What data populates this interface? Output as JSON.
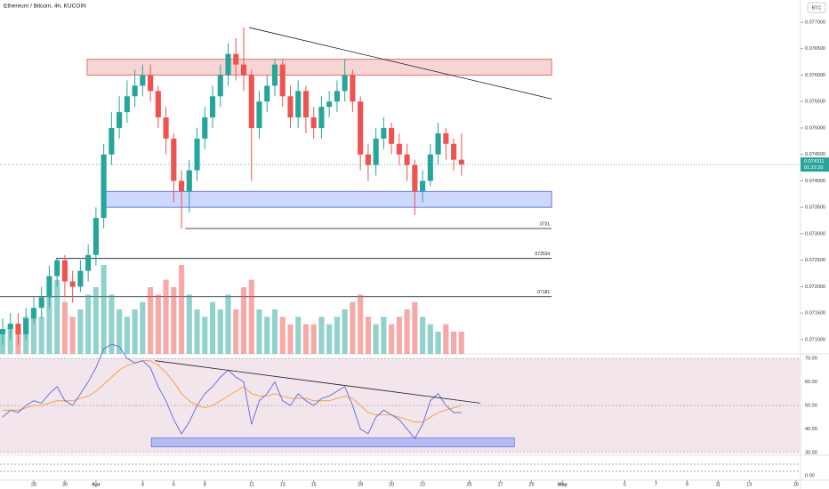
{
  "chart_data": {
    "type": "candlestick",
    "title": "Ethereum / Bitcoin, 4h, KUCOIN",
    "currency": "BTC",
    "x": [
      26,
      26.5,
      27,
      27.5,
      28,
      28.5,
      29,
      29.5,
      30,
      30.5,
      31,
      31.5,
      32,
      32.5,
      33,
      33.5,
      34,
      34.5,
      35,
      35.5,
      36,
      36.5,
      37,
      37.5,
      38,
      38.5,
      39,
      39.5,
      40,
      40.5,
      41,
      41.5,
      42,
      42.5,
      43,
      43.5,
      44,
      44.5,
      45,
      45.5,
      46,
      46.5,
      47,
      47.5,
      48,
      48.5,
      49,
      49.5,
      50,
      50.5,
      51,
      51.5,
      52,
      52.5,
      53,
      53.5,
      54,
      54.5,
      55,
      55.5
    ],
    "open": [
      0.0711,
      0.0712,
      0.0713,
      0.0711,
      0.0714,
      0.0716,
      0.0718,
      0.0722,
      0.0725,
      0.0721,
      0.072,
      0.0723,
      0.0726,
      0.0733,
      0.0745,
      0.075,
      0.0753,
      0.0756,
      0.0758,
      0.076,
      0.0757,
      0.0752,
      0.0748,
      0.074,
      0.0738,
      0.0742,
      0.0748,
      0.0752,
      0.0756,
      0.076,
      0.0764,
      0.0762,
      0.076,
      0.075,
      0.0755,
      0.0758,
      0.0762,
      0.0756,
      0.0752,
      0.0757,
      0.0752,
      0.075,
      0.0754,
      0.0755,
      0.0757,
      0.076,
      0.0755,
      0.0745,
      0.0743,
      0.0748,
      0.075,
      0.0747,
      0.0745,
      0.0743,
      0.0738,
      0.074,
      0.0745,
      0.0749,
      0.0747,
      0.0744
    ],
    "high": [
      0.0714,
      0.0715,
      0.0715,
      0.0716,
      0.0718,
      0.072,
      0.0724,
      0.07253,
      0.0726,
      0.0723,
      0.0725,
      0.0728,
      0.0735,
      0.0747,
      0.0753,
      0.0756,
      0.0759,
      0.0761,
      0.0762,
      0.0762,
      0.0758,
      0.0754,
      0.0749,
      0.0742,
      0.0744,
      0.075,
      0.0754,
      0.0758,
      0.0762,
      0.0766,
      0.0767,
      0.0769,
      0.0761,
      0.0757,
      0.076,
      0.0763,
      0.0763,
      0.0758,
      0.0759,
      0.0758,
      0.0754,
      0.0756,
      0.0757,
      0.0759,
      0.0763,
      0.0761,
      0.0756,
      0.0747,
      0.075,
      0.0752,
      0.0751,
      0.0749,
      0.0747,
      0.0744,
      0.0742,
      0.0747,
      0.0751,
      0.075,
      0.0748,
      0.0749
    ],
    "low": [
      0.0709,
      0.071,
      0.0709,
      0.071,
      0.0713,
      0.0714,
      0.0716,
      0.072,
      0.0718,
      0.0717,
      0.0719,
      0.0721,
      0.0724,
      0.0731,
      0.0743,
      0.0748,
      0.0751,
      0.0754,
      0.0756,
      0.0755,
      0.075,
      0.0745,
      0.0736,
      0.0731,
      0.0734,
      0.074,
      0.0746,
      0.075,
      0.0754,
      0.0758,
      0.0759,
      0.0757,
      0.074,
      0.0748,
      0.0753,
      0.0756,
      0.0754,
      0.075,
      0.075,
      0.0749,
      0.0748,
      0.0748,
      0.0752,
      0.0753,
      0.0755,
      0.0753,
      0.0742,
      0.074,
      0.0741,
      0.0746,
      0.0745,
      0.0743,
      0.074,
      0.07335,
      0.0736,
      0.0739,
      0.0743,
      0.0744,
      0.0742,
      0.0741
    ],
    "close": [
      0.0712,
      0.0713,
      0.0711,
      0.0714,
      0.0716,
      0.0718,
      0.0722,
      0.0725,
      0.0721,
      0.072,
      0.0723,
      0.0726,
      0.0733,
      0.0745,
      0.075,
      0.0753,
      0.0756,
      0.0758,
      0.076,
      0.0757,
      0.0752,
      0.0748,
      0.074,
      0.0738,
      0.0742,
      0.0748,
      0.0752,
      0.0756,
      0.076,
      0.0764,
      0.0762,
      0.076,
      0.075,
      0.0755,
      0.0758,
      0.0762,
      0.0756,
      0.0752,
      0.0757,
      0.0752,
      0.075,
      0.0754,
      0.0755,
      0.0757,
      0.076,
      0.0755,
      0.0745,
      0.0743,
      0.0748,
      0.075,
      0.0747,
      0.0745,
      0.0743,
      0.0738,
      0.074,
      0.0745,
      0.0749,
      0.0747,
      0.0744,
      0.07431
    ],
    "volume": [
      3,
      4,
      3,
      5,
      6,
      5,
      8,
      10,
      7,
      5,
      6,
      8,
      9,
      12,
      8,
      6,
      5,
      6,
      7,
      9,
      8,
      10,
      9,
      12,
      8,
      6,
      5,
      7,
      6,
      8,
      6,
      9,
      10,
      6,
      5,
      6,
      5,
      4,
      5,
      4,
      4,
      5,
      4,
      5,
      6,
      7,
      8,
      5,
      4,
      5,
      4,
      5,
      6,
      7,
      5,
      4,
      3,
      4,
      3,
      3
    ],
    "up_color": "#26a69a",
    "down_color": "#ef5350",
    "xlim": [
      25.83,
      77.3
    ],
    "xticks": [
      28,
      30,
      {
        "value": 32,
        "label": "Apr"
      },
      {
        "value": 35,
        "label": "4"
      },
      {
        "value": 37,
        "label": "6"
      },
      {
        "value": 39,
        "label": "8"
      },
      {
        "value": 42,
        "label": "11"
      },
      {
        "value": 44,
        "label": "13"
      },
      {
        "value": 46,
        "label": "15"
      },
      {
        "value": 49,
        "label": "18"
      },
      {
        "value": 51,
        "label": "20"
      },
      {
        "value": 53,
        "label": "22"
      },
      {
        "value": 56,
        "label": "25"
      },
      {
        "value": 58,
        "label": "27"
      },
      {
        "value": 60,
        "label": "29"
      },
      {
        "value": 62,
        "label": "May"
      },
      {
        "value": 66,
        "label": "5"
      },
      {
        "value": 68,
        "label": "7"
      },
      {
        "value": 70,
        "label": "9"
      },
      {
        "value": 72,
        "label": "11"
      },
      {
        "value": 74,
        "label": "13"
      },
      {
        "value": 77,
        "label": "16"
      }
    ],
    "ylim": [
      0.07073,
      0.07742
    ],
    "yticks": [
      {
        "value": 0.071,
        "label": "0.071000"
      },
      {
        "value": 0.0715,
        "label": "0.071500"
      },
      {
        "value": 0.072,
        "label": "0.072000"
      },
      {
        "value": 0.0725,
        "label": "0.072500"
      },
      {
        "value": 0.073,
        "label": "0.073000"
      },
      {
        "value": 0.0735,
        "label": "0.073500"
      },
      {
        "value": 0.074,
        "label": "0.074000"
      },
      {
        "value": 0.0745,
        "label": "0.074500"
      },
      {
        "value": 0.075,
        "label": "0.075000"
      },
      {
        "value": 0.0755,
        "label": "0.075500"
      },
      {
        "value": 0.076,
        "label": "0.076000"
      },
      {
        "value": 0.0765,
        "label": "0.076500"
      },
      {
        "value": 0.077,
        "label": "0.077000"
      }
    ],
    "last_price": {
      "value": 0.07431,
      "label": "0.074311"
    },
    "countdown": "01:22:20",
    "zones": [
      {
        "x": [
          31.43,
          61.3
        ],
        "y": [
          0.076,
          0.0763
        ],
        "color": "#e57373"
      },
      {
        "x": [
          32.52,
          61.3
        ],
        "y": [
          0.0735,
          0.0738
        ],
        "color": "#5c7cfa"
      }
    ],
    "levels": [
      {
        "x": [
          37.73,
          61.3
        ],
        "value": 0.0731,
        "label": ".0731"
      },
      {
        "x": [
          29.43,
          61.3
        ],
        "value": 0.072534,
        "label": ".072534"
      },
      {
        "x": [
          25.83,
          61.3
        ],
        "value": 0.07181,
        "label": ".07181"
      }
    ],
    "trendline": {
      "x": [
        41.85,
        61.3
      ],
      "y": [
        0.0769,
        0.07555
      ]
    },
    "rsi": {
      "values": [
        45,
        48,
        47,
        50,
        52,
        51,
        55,
        58,
        52,
        50,
        55,
        60,
        66,
        74,
        76,
        75,
        70,
        68,
        69,
        66,
        58,
        52,
        44,
        38,
        43,
        50,
        55,
        58,
        62,
        65,
        62,
        60,
        42,
        52,
        55,
        60,
        52,
        50,
        55,
        52,
        50,
        53,
        54,
        56,
        58,
        50,
        40,
        38,
        45,
        48,
        46,
        44,
        40,
        36,
        42,
        52,
        55,
        50,
        47,
        47
      ],
      "ma": [
        48,
        48,
        48,
        49,
        50,
        50,
        51,
        52,
        52,
        52,
        53,
        54,
        56,
        59,
        62,
        65,
        67,
        68,
        69,
        69,
        67,
        64,
        60,
        55,
        52,
        50,
        49,
        50,
        52,
        54,
        56,
        58,
        55,
        54,
        54,
        55,
        54,
        53,
        53,
        53,
        52,
        52,
        52,
        53,
        54,
        53,
        50,
        47,
        46,
        46,
        46,
        45,
        44,
        43,
        43,
        45,
        47,
        48,
        49,
        50
      ],
      "color": "#5b6bd6",
      "ma_color": "#f59c3c",
      "ylim": [
        28.9,
        71.9
      ],
      "yticks": [
        {
          "value": 30,
          "label": "30.00"
        },
        {
          "value": 40,
          "label": "40.00"
        },
        {
          "value": 50,
          "label": "50.00"
        },
        {
          "value": 60,
          "label": "60.00"
        },
        {
          "value": 70,
          "label": "70.00"
        }
      ],
      "trendline": {
        "x": [
          35.8,
          56.7
        ],
        "y": [
          69,
          51
        ]
      },
      "zone": {
        "x": [
          35.56,
          58.9
        ],
        "y": [
          32.4,
          36.2
        ]
      }
    },
    "oscillator_ticks": [
      {
        "value": 0,
        "label": "0.00"
      }
    ]
  }
}
